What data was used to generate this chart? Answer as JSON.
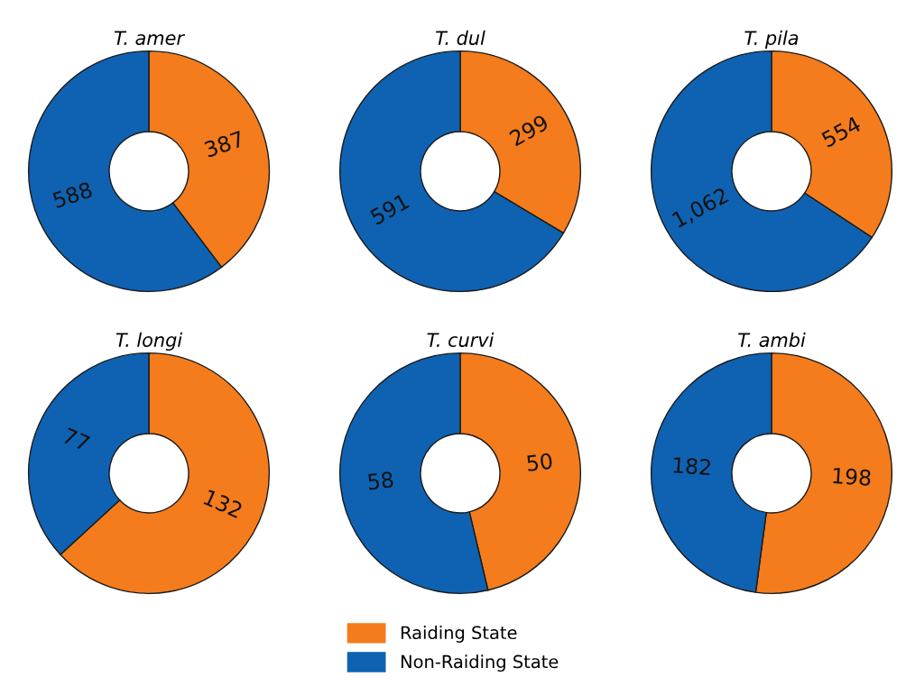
{
  "chart_data": [
    {
      "type": "donut",
      "title": "T. amer",
      "categories": [
        "Raiding State",
        "Non-Raiding State"
      ],
      "values": [
        387,
        588
      ],
      "colors": [
        "#f47c1c",
        "#0f62b1"
      ],
      "value_labels": [
        "387",
        "588"
      ],
      "legend": "bottom"
    },
    {
      "type": "donut",
      "title": "T. dul",
      "categories": [
        null,
        null
      ],
      "values": [
        299,
        591
      ],
      "colors": [
        "#f47c1c",
        "#0f62b1"
      ],
      "value_labels": [
        "299",
        "591"
      ]
    },
    {
      "type": "donut",
      "title": "T. pila",
      "categories": [
        null,
        null
      ],
      "values": [
        554,
        1062
      ],
      "colors": [
        "#f47c1c",
        "#0f62b1"
      ],
      "value_labels": [
        "554",
        "1,062"
      ]
    },
    {
      "type": "donut",
      "title": "T. longi",
      "categories": [
        null,
        null
      ],
      "values": [
        132,
        77
      ],
      "colors": [
        "#f47c1c",
        "#0f62b1"
      ],
      "value_labels": [
        "132",
        "77"
      ]
    },
    {
      "type": "donut",
      "title": "T. curvi",
      "categories": [
        null,
        null
      ],
      "values": [
        50,
        58
      ],
      "colors": [
        "#f47c1c",
        "#0f62b1"
      ],
      "value_labels": [
        "50",
        "58"
      ]
    },
    {
      "type": "donut",
      "title": "T. ambi",
      "categories": [
        null,
        null
      ],
      "values": [
        198,
        182
      ],
      "colors": [
        "#f47c1c",
        "#0f62b1"
      ],
      "value_labels": [
        "198",
        "182"
      ]
    }
  ]
}
